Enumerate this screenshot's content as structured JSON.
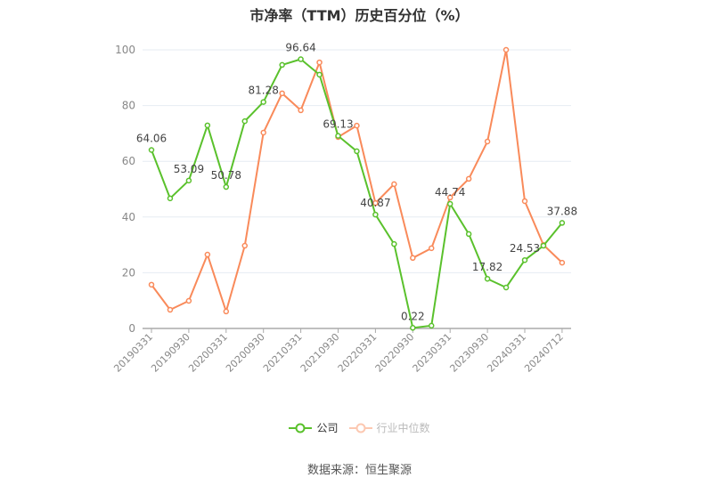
{
  "title": "市净率（TTM）历史百分位（%）",
  "legend": [
    {
      "label": "公司",
      "color": "#5ac12c",
      "faded": false
    },
    {
      "label": "行业中位数",
      "color": "#f98a5a",
      "faded": true
    }
  ],
  "source": "数据来源：恒生聚源",
  "chart_data": {
    "type": "line",
    "title": "市净率（TTM）历史百分位（%）",
    "xlabel": "",
    "ylabel": "",
    "ylim": [
      0,
      100
    ],
    "yticks": [
      0,
      20,
      40,
      60,
      80,
      100
    ],
    "grid": true,
    "legend_position": "bottom",
    "x": [
      "20190331",
      "20190630",
      "20190930",
      "20191231",
      "20200331",
      "20200630",
      "20200930",
      "20201231",
      "20210331",
      "20210630",
      "20210930",
      "20211231",
      "20220331",
      "20220630",
      "20220930",
      "20221231",
      "20230331",
      "20230630",
      "20230930",
      "20231231",
      "20240331",
      "20240630",
      "20240712"
    ],
    "x_tick_labels_shown": [
      "20190331",
      "20190930",
      "20200331",
      "20200930",
      "20210331",
      "20210930",
      "20220331",
      "20220930",
      "20230331",
      "20230930",
      "20240331",
      "20240712"
    ],
    "series": [
      {
        "name": "公司",
        "color": "#5ac12c",
        "values": [
          64.06,
          46.7,
          53.09,
          72.9,
          50.78,
          74.4,
          81.28,
          94.6,
          96.64,
          91.1,
          69.13,
          63.6,
          40.87,
          30.3,
          0.22,
          1.0,
          44.74,
          33.9,
          17.82,
          14.7,
          24.53,
          29.7,
          37.88
        ],
        "labels": {
          "0": "64.06",
          "2": "53.09",
          "4": "50.78",
          "6": "81.28",
          "8": "96.64",
          "10": "69.13",
          "12": "40.87",
          "14": "0.22",
          "16": "44.74",
          "18": "17.82",
          "20": "24.53",
          "22": "37.88"
        }
      },
      {
        "name": "行业中位数",
        "color": "#f98a5a",
        "values": [
          15.7,
          6.7,
          9.9,
          26.5,
          6.1,
          29.7,
          70.3,
          84.4,
          78.3,
          95.5,
          68.7,
          72.8,
          45.0,
          51.8,
          25.3,
          28.8,
          47.0,
          53.7,
          67.1,
          100.0,
          45.7,
          30.0,
          23.6
        ]
      }
    ]
  }
}
